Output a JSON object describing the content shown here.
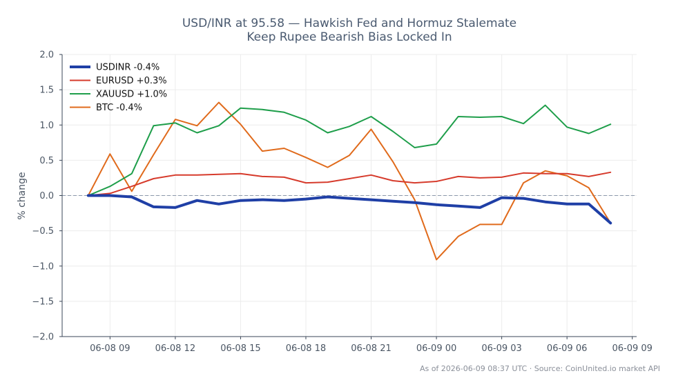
{
  "chart_data": {
    "type": "line",
    "title_lines": [
      "USD/INR at 95.58 — Hawkish Fed and Hormuz Stalemate",
      "Keep Rupee Bearish Bias Locked In"
    ],
    "xlabel": "",
    "ylabel": "% change",
    "ylim": [
      -2.0,
      2.0
    ],
    "yticks": [
      -2.0,
      -1.5,
      -1.0,
      -0.5,
      0.0,
      0.5,
      1.0,
      1.5,
      2.0
    ],
    "ytick_labels": [
      "−2.0",
      "−1.5",
      "−1.0",
      "−0.5",
      "0.0",
      "0.5",
      "1.0",
      "1.5",
      "2.0"
    ],
    "xlim": [
      "2026-06-08 06:48",
      "2026-06-09 09:12"
    ],
    "xticks": [
      "2026-06-08 09:00",
      "2026-06-08 12:00",
      "2026-06-08 15:00",
      "2026-06-08 18:00",
      "2026-06-08 21:00",
      "2026-06-09 00:00",
      "2026-06-09 03:00",
      "2026-06-09 06:00",
      "2026-06-09 09:00"
    ],
    "xtick_labels": [
      "06-08 09",
      "06-08 12",
      "06-08 15",
      "06-08 18",
      "06-08 21",
      "06-09 00",
      "06-09 03",
      "06-09 06",
      "06-09 09"
    ],
    "x": [
      "2026-06-08 08:00",
      "2026-06-08 09:00",
      "2026-06-08 10:00",
      "2026-06-08 11:00",
      "2026-06-08 12:00",
      "2026-06-08 13:00",
      "2026-06-08 14:00",
      "2026-06-08 15:00",
      "2026-06-08 16:00",
      "2026-06-08 17:00",
      "2026-06-08 18:00",
      "2026-06-08 19:00",
      "2026-06-08 20:00",
      "2026-06-08 21:00",
      "2026-06-08 22:00",
      "2026-06-08 23:00",
      "2026-06-09 00:00",
      "2026-06-09 01:00",
      "2026-06-09 02:00",
      "2026-06-09 03:00",
      "2026-06-09 04:00",
      "2026-06-09 05:00",
      "2026-06-09 06:00",
      "2026-06-09 07:00",
      "2026-06-09 08:00"
    ],
    "grid": true,
    "zero_line": true,
    "legend_position": "top-left",
    "series": [
      {
        "name": "USDINR -0.4%",
        "color": "#1f3fa6",
        "width": 4,
        "values": [
          0.0,
          0.0,
          -0.02,
          -0.16,
          -0.17,
          -0.07,
          -0.12,
          -0.07,
          -0.06,
          -0.07,
          -0.05,
          -0.02,
          -0.04,
          -0.06,
          -0.08,
          -0.1,
          -0.13,
          -0.15,
          -0.17,
          -0.03,
          -0.04,
          -0.09,
          -0.12,
          -0.12,
          -0.39
        ]
      },
      {
        "name": "EURUSD +0.3%",
        "color": "#d63a2b",
        "width": 2,
        "values": [
          0.0,
          0.03,
          0.13,
          0.24,
          0.29,
          0.29,
          0.3,
          0.31,
          0.27,
          0.26,
          0.18,
          0.19,
          0.24,
          0.29,
          0.21,
          0.18,
          0.2,
          0.27,
          0.25,
          0.26,
          0.32,
          0.31,
          0.31,
          0.27,
          0.33
        ]
      },
      {
        "name": "XAUUSD +1.0%",
        "color": "#1e9e4a",
        "width": 2,
        "values": [
          0.0,
          0.13,
          0.31,
          0.99,
          1.03,
          0.89,
          0.99,
          1.24,
          1.22,
          1.18,
          1.07,
          0.89,
          0.98,
          1.12,
          0.91,
          0.68,
          0.73,
          1.12,
          1.11,
          1.12,
          1.02,
          1.28,
          0.97,
          0.88,
          1.01
        ]
      },
      {
        "name": "BTC -0.4%",
        "color": "#e06a1b",
        "width": 2,
        "values": [
          0.0,
          0.59,
          0.06,
          0.58,
          1.08,
          0.99,
          1.32,
          1.01,
          0.63,
          0.67,
          0.54,
          0.4,
          0.57,
          0.94,
          0.48,
          -0.06,
          -0.91,
          -0.58,
          -0.41,
          -0.41,
          0.18,
          0.35,
          0.28,
          0.11,
          -0.39
        ]
      }
    ],
    "annotation": "As of 2026-06-09 08:37 UTC · Source: CoinUnited.io market API"
  }
}
